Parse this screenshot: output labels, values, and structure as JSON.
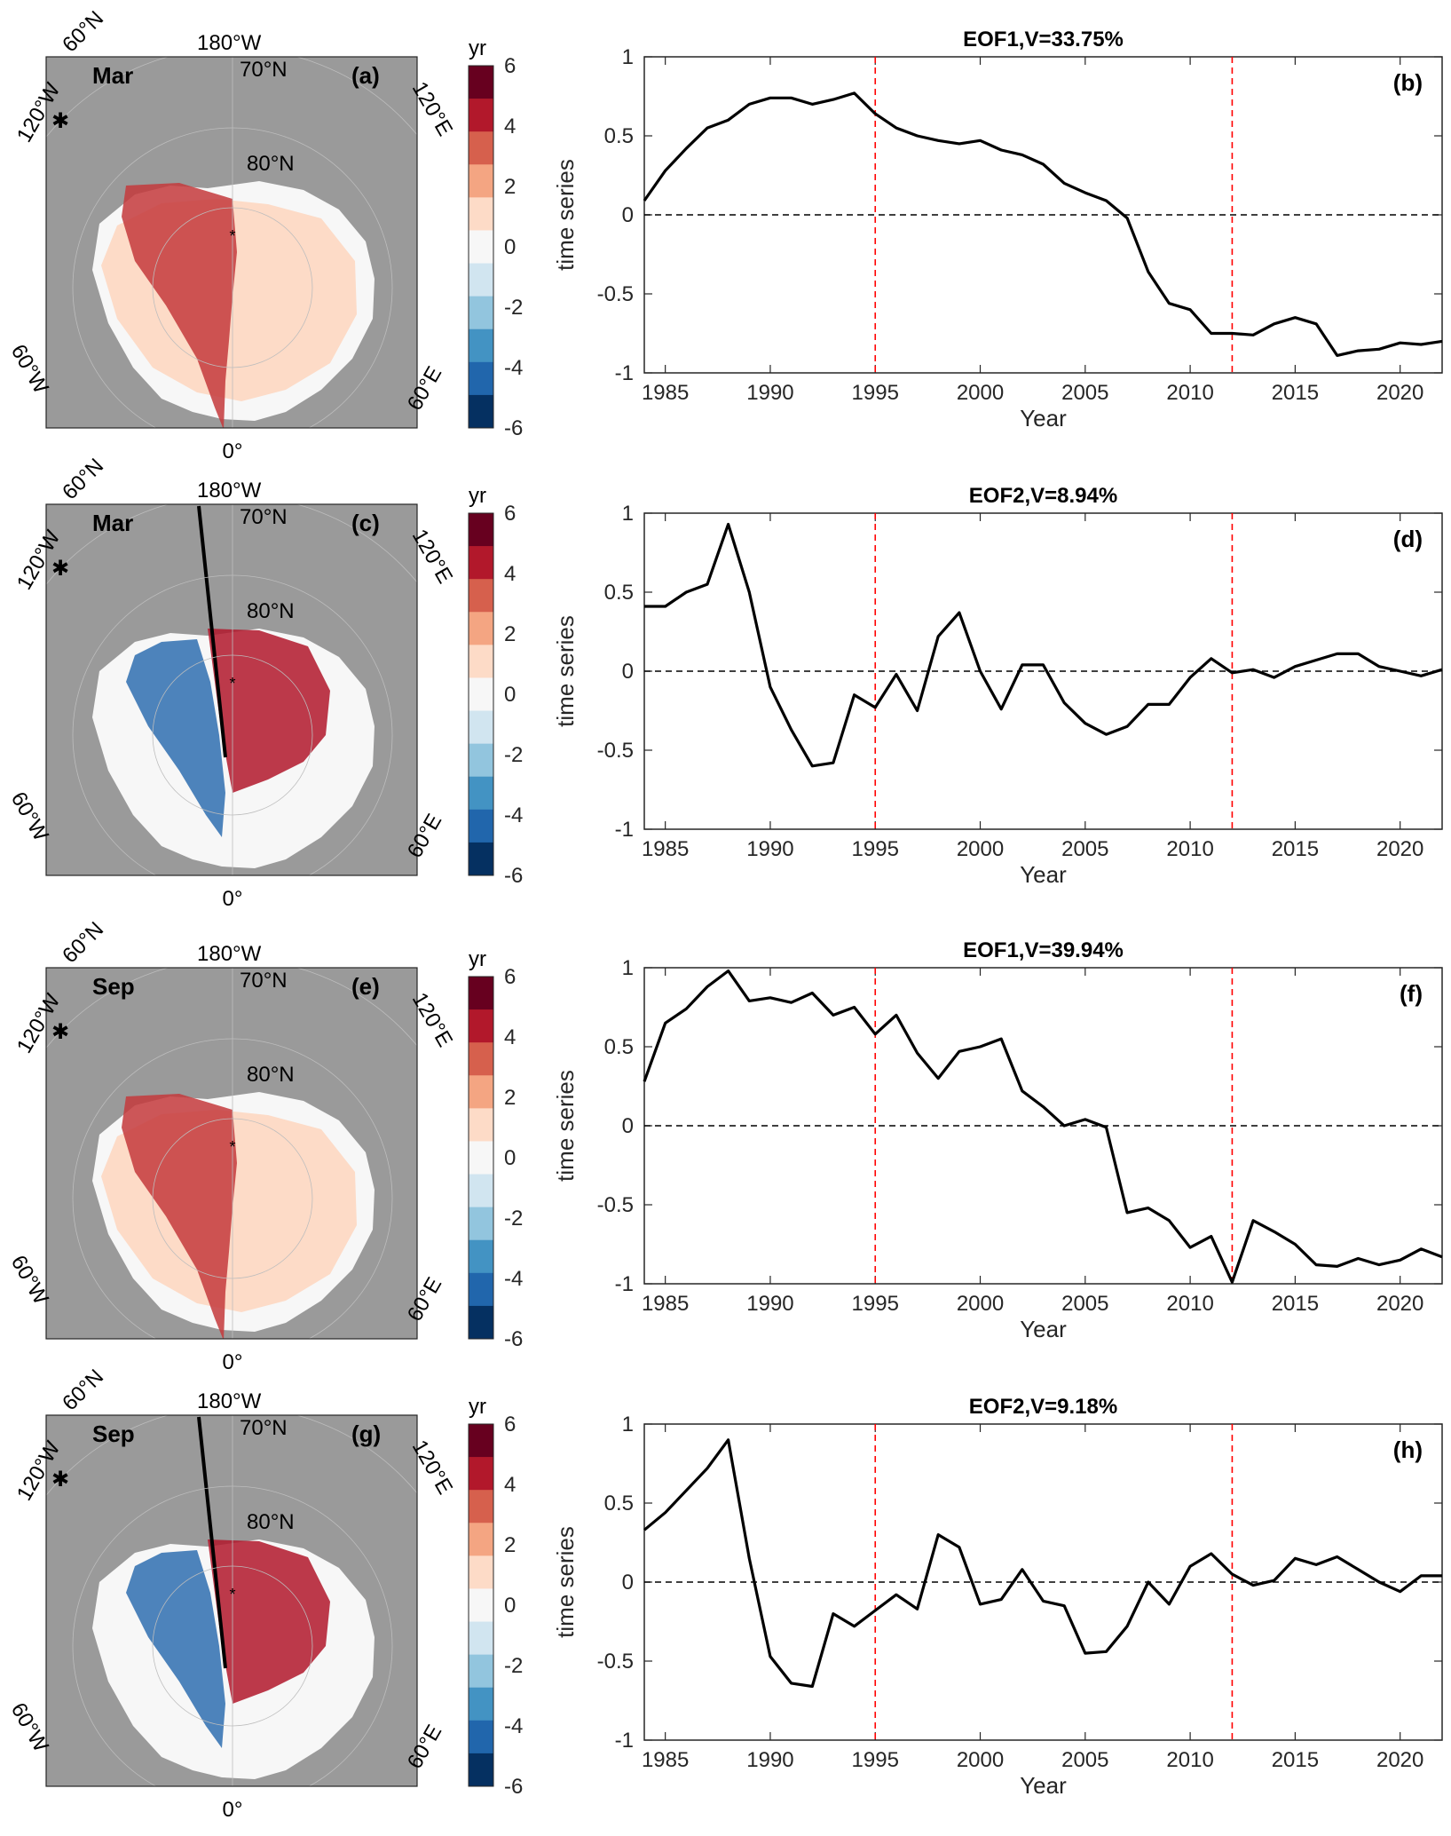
{
  "colorbar": {
    "unit": "yr",
    "ticks": [
      "6",
      "4",
      "2",
      "0",
      "-2",
      "-4",
      "-6"
    ],
    "colors": [
      "#67001f",
      "#b2182b",
      "#d6604d",
      "#f4a582",
      "#fddbc7",
      "#f7f7f7",
      "#d1e5f0",
      "#92c5de",
      "#4393c3",
      "#2166ac",
      "#053061"
    ]
  },
  "map_labels": {
    "top_left_lat": "60°N",
    "top_lon": "180°W",
    "lat70": "70°N",
    "lat80": "80°N",
    "left_lon": "120°W",
    "right_lon": "120°E",
    "lower_left": "60°W",
    "lower_right": "60°E",
    "bottom_lon": "0°"
  },
  "map_panels": [
    {
      "month": "Mar",
      "letter": "(a)",
      "pattern": "positive"
    },
    {
      "month": "Mar",
      "letter": "(c)",
      "pattern": "dipole"
    },
    {
      "month": "Sep",
      "letter": "(e)",
      "pattern": "positive"
    },
    {
      "month": "Sep",
      "letter": "(g)",
      "pattern": "dipole"
    }
  ],
  "chart_data": [
    {
      "type": "line",
      "title": "EOF1,V=33.75%",
      "letter": "(b)",
      "xlabel": "Year",
      "ylabel": "time series",
      "xlim": [
        1984,
        2022
      ],
      "ylim": [
        -1,
        1
      ],
      "xticks": [
        1985,
        1990,
        1995,
        2000,
        2005,
        2010,
        2015,
        2020
      ],
      "yticks": [
        1,
        0.5,
        0,
        -0.5,
        -1
      ],
      "reference_lines": [
        1995,
        2012
      ],
      "x": [
        1984,
        1985,
        1986,
        1987,
        1988,
        1989,
        1990,
        1991,
        1992,
        1993,
        1994,
        1995,
        1996,
        1997,
        1998,
        1999,
        2000,
        2001,
        2002,
        2003,
        2004,
        2005,
        2006,
        2007,
        2008,
        2009,
        2010,
        2011,
        2012,
        2013,
        2014,
        2015,
        2016,
        2017,
        2018,
        2019,
        2020,
        2021,
        2022
      ],
      "y": [
        0.09,
        0.28,
        0.42,
        0.55,
        0.6,
        0.7,
        0.74,
        0.74,
        0.7,
        0.73,
        0.77,
        0.64,
        0.55,
        0.5,
        0.47,
        0.45,
        0.47,
        0.41,
        0.38,
        0.32,
        0.2,
        0.14,
        0.09,
        -0.02,
        -0.36,
        -0.56,
        -0.6,
        -0.75,
        -0.75,
        -0.76,
        -0.69,
        -0.65,
        -0.69,
        -0.89,
        -0.86,
        -0.85,
        -0.81,
        -0.82,
        -0.8
      ]
    },
    {
      "type": "line",
      "title": "EOF2,V=8.94%",
      "letter": "(d)",
      "xlabel": "Year",
      "ylabel": "time series",
      "xlim": [
        1984,
        2022
      ],
      "ylim": [
        -1,
        1
      ],
      "xticks": [
        1985,
        1990,
        1995,
        2000,
        2005,
        2010,
        2015,
        2020
      ],
      "yticks": [
        1,
        0.5,
        0,
        -0.5,
        -1
      ],
      "reference_lines": [
        1995,
        2012
      ],
      "x": [
        1984,
        1985,
        1986,
        1987,
        1988,
        1989,
        1990,
        1991,
        1992,
        1993,
        1994,
        1995,
        1996,
        1997,
        1998,
        1999,
        2000,
        2001,
        2002,
        2003,
        2004,
        2005,
        2006,
        2007,
        2008,
        2009,
        2010,
        2011,
        2012,
        2013,
        2014,
        2015,
        2016,
        2017,
        2018,
        2019,
        2020,
        2021,
        2022
      ],
      "y": [
        0.41,
        0.41,
        0.5,
        0.55,
        0.93,
        0.5,
        -0.1,
        -0.37,
        -0.6,
        -0.58,
        -0.15,
        -0.23,
        -0.02,
        -0.25,
        0.22,
        0.37,
        0.0,
        -0.24,
        0.04,
        0.04,
        -0.2,
        -0.33,
        -0.4,
        -0.35,
        -0.21,
        -0.21,
        -0.04,
        0.08,
        -0.01,
        0.01,
        -0.04,
        0.03,
        0.07,
        0.11,
        0.11,
        0.03,
        0.0,
        -0.03,
        0.01
      ]
    },
    {
      "type": "line",
      "title": "EOF1,V=39.94%",
      "letter": "(f)",
      "xlabel": "Year",
      "ylabel": "time series",
      "xlim": [
        1984,
        2022
      ],
      "ylim": [
        -1,
        1
      ],
      "xticks": [
        1985,
        1990,
        1995,
        2000,
        2005,
        2010,
        2015,
        2020
      ],
      "yticks": [
        1,
        0.5,
        0,
        -0.5,
        -1
      ],
      "reference_lines": [
        1995,
        2012
      ],
      "x": [
        1984,
        1985,
        1986,
        1987,
        1988,
        1989,
        1990,
        1991,
        1992,
        1993,
        1994,
        1995,
        1996,
        1997,
        1998,
        1999,
        2000,
        2001,
        2002,
        2003,
        2004,
        2005,
        2006,
        2007,
        2008,
        2009,
        2010,
        2011,
        2012,
        2013,
        2014,
        2015,
        2016,
        2017,
        2018,
        2019,
        2020,
        2021,
        2022
      ],
      "y": [
        0.28,
        0.65,
        0.74,
        0.88,
        0.98,
        0.79,
        0.81,
        0.78,
        0.84,
        0.7,
        0.75,
        0.58,
        0.7,
        0.46,
        0.3,
        0.47,
        0.5,
        0.55,
        0.22,
        0.12,
        0.0,
        0.04,
        -0.01,
        -0.55,
        -0.52,
        -0.6,
        -0.77,
        -0.7,
        -0.99,
        -0.6,
        -0.67,
        -0.75,
        -0.88,
        -0.89,
        -0.84,
        -0.88,
        -0.85,
        -0.78,
        -0.83
      ]
    },
    {
      "type": "line",
      "title": "EOF2,V=9.18%",
      "letter": "(h)",
      "xlabel": "Year",
      "ylabel": "time series",
      "xlim": [
        1984,
        2022
      ],
      "ylim": [
        -1,
        1
      ],
      "xticks": [
        1985,
        1990,
        1995,
        2000,
        2005,
        2010,
        2015,
        2020
      ],
      "yticks": [
        1,
        0.5,
        0,
        -0.5,
        -1
      ],
      "reference_lines": [
        1995,
        2012
      ],
      "x": [
        1984,
        1985,
        1986,
        1987,
        1988,
        1989,
        1990,
        1991,
        1992,
        1993,
        1994,
        1995,
        1996,
        1997,
        1998,
        1999,
        2000,
        2001,
        2002,
        2003,
        2004,
        2005,
        2006,
        2007,
        2008,
        2009,
        2010,
        2011,
        2012,
        2013,
        2014,
        2015,
        2016,
        2017,
        2018,
        2019,
        2020,
        2021,
        2022
      ],
      "y": [
        0.33,
        0.44,
        0.58,
        0.72,
        0.9,
        0.15,
        -0.47,
        -0.64,
        -0.66,
        -0.2,
        -0.28,
        -0.18,
        -0.08,
        -0.17,
        0.3,
        0.22,
        -0.14,
        -0.11,
        0.08,
        -0.12,
        -0.15,
        -0.45,
        -0.44,
        -0.28,
        0.0,
        -0.14,
        0.1,
        0.18,
        0.05,
        -0.02,
        0.01,
        0.15,
        0.11,
        0.16,
        0.08,
        0.0,
        -0.06,
        0.04,
        0.04
      ]
    }
  ]
}
